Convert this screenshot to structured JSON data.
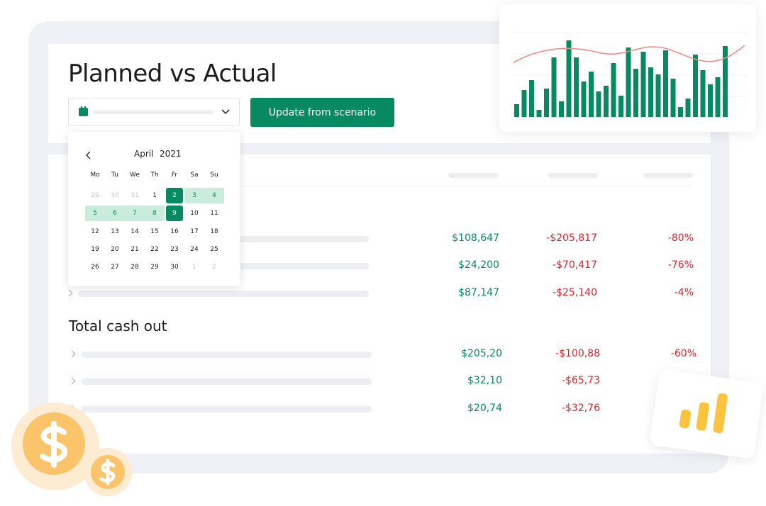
{
  "header": {
    "title": "Planned vs Actual",
    "button": "Update from scenario"
  },
  "calendar": {
    "month": "April",
    "year": "2021",
    "weekdays": [
      "Mo",
      "Tu",
      "We",
      "Th",
      "Fr",
      "Sa",
      "Su"
    ],
    "weeks": [
      [
        "29",
        "30",
        "31",
        "1",
        "2",
        "3",
        "4"
      ],
      [
        "5",
        "6",
        "7",
        "8",
        "9",
        "10",
        "11"
      ],
      [
        "12",
        "13",
        "14",
        "15",
        "16",
        "17",
        "18"
      ],
      [
        "19",
        "20",
        "21",
        "22",
        "23",
        "24",
        "25"
      ],
      [
        "26",
        "27",
        "28",
        "29",
        "30",
        "1",
        "2"
      ]
    ]
  },
  "table": {
    "rows": [
      [
        "$108,647",
        "-$205,817",
        "-80%"
      ],
      [
        "$24,200",
        "-$70,417",
        "-76%"
      ],
      [
        "$87,147",
        "-$25,140",
        "-4%"
      ]
    ]
  },
  "cash_out": {
    "title": "Total cash out",
    "rows": [
      [
        "$205,20",
        "-$100,88",
        "-60%"
      ],
      [
        "$32,10",
        "-$65,73"
      ],
      [
        "$20,74",
        "-$32,76"
      ]
    ]
  }
}
